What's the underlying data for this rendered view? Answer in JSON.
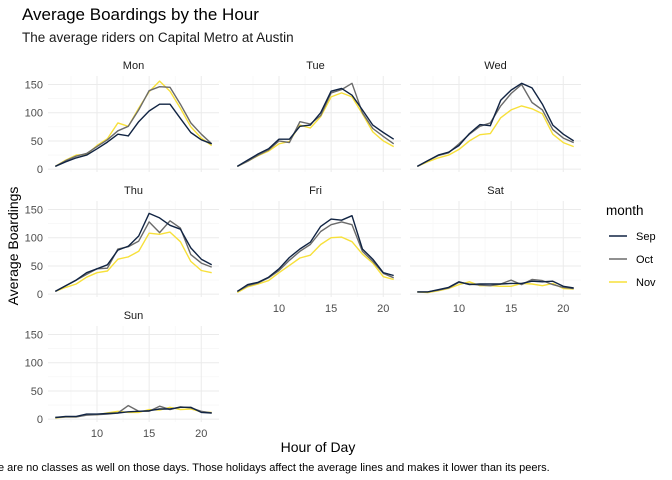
{
  "chart_data": {
    "type": "line",
    "title": "Average Boardings by the Hour",
    "subtitle": "The average riders on Capital Metro at Austin",
    "xlabel": "Hour of Day",
    "ylabel": "Average Boardings",
    "caption": "e are no classes as well on those days. Those holidays affect the average lines and makes it lower than its peers.",
    "xlim": [
      5.3,
      21.7
    ],
    "ylim": [
      -5,
      165
    ],
    "x_ticks": [
      10,
      15,
      20
    ],
    "y_ticks": [
      0,
      50,
      100,
      150
    ],
    "legend": {
      "title": "month",
      "placement": "right",
      "entries": [
        {
          "name": "Sep",
          "color": "#112443"
        },
        {
          "name": "Oct",
          "color": "#6b6b6b"
        },
        {
          "name": "Nov",
          "color": "#f7e03a"
        }
      ]
    },
    "hours": [
      6,
      7,
      8,
      9,
      10,
      11,
      12,
      13,
      14,
      15,
      16,
      17,
      18,
      19,
      20,
      21
    ],
    "facets": [
      {
        "label": "Mon",
        "series": [
          {
            "name": "Sep",
            "values": [
              5,
              13,
              20,
              25,
              36,
              48,
              62,
              59,
              84,
              103,
              115,
              115,
              90,
              65,
              52,
              45
            ]
          },
          {
            "name": "Oct",
            "values": [
              5,
              15,
              23,
              28,
              40,
              52,
              68,
              76,
              105,
              139,
              146,
              145,
              115,
              82,
              62,
              45
            ]
          },
          {
            "name": "Nov",
            "values": [
              5,
              16,
              25,
              26,
              42,
              54,
              82,
              76,
              108,
              137,
              156,
              138,
              108,
              75,
              55,
              42
            ]
          }
        ]
      },
      {
        "label": "Tue",
        "series": [
          {
            "name": "Sep",
            "values": [
              5,
              16,
              27,
              36,
              53,
              53,
              76,
              78,
              100,
              138,
              143,
              131,
              105,
              78,
              65,
              53
            ]
          },
          {
            "name": "Oct",
            "values": [
              5,
              14,
              25,
              34,
              50,
              47,
              84,
              80,
              95,
              135,
              141,
              152,
              100,
              72,
              58,
              45
            ]
          },
          {
            "name": "Nov",
            "values": [
              5,
              14,
              24,
              32,
              45,
              49,
              78,
              73,
              93,
              128,
              135,
              128,
              98,
              66,
              50,
              40
            ]
          }
        ]
      },
      {
        "label": "Wed",
        "series": [
          {
            "name": "Sep",
            "values": [
              5,
              15,
              25,
              30,
              42,
              63,
              79,
              77,
              122,
              140,
              152,
              144,
              115,
              78,
              62,
              50
            ]
          },
          {
            "name": "Oct",
            "values": [
              5,
              15,
              24,
              29,
              45,
              62,
              76,
              82,
              112,
              134,
              150,
              118,
              105,
              70,
              55,
              47
            ]
          },
          {
            "name": "Nov",
            "values": [
              5,
              13,
              20,
              25,
              35,
              50,
              61,
              63,
              91,
              105,
              112,
              107,
              98,
              62,
              47,
              40
            ]
          }
        ]
      },
      {
        "label": "Thu",
        "series": [
          {
            "name": "Sep",
            "values": [
              5,
              15,
              25,
              38,
              45,
              52,
              78,
              85,
              103,
              143,
              135,
              122,
              115,
              82,
              62,
              52
            ]
          },
          {
            "name": "Oct",
            "values": [
              5,
              15,
              25,
              35,
              45,
              46,
              80,
              84,
              94,
              128,
              109,
              130,
              117,
              70,
              55,
              48
            ]
          },
          {
            "name": "Nov",
            "values": [
              5,
              12,
              18,
              30,
              38,
              41,
              62,
              66,
              76,
              108,
              106,
              110,
              93,
              58,
              42,
              38
            ]
          }
        ]
      },
      {
        "label": "Fri",
        "series": [
          {
            "name": "Sep",
            "values": [
              5,
              17,
              21,
              30,
              45,
              65,
              80,
              92,
              120,
              133,
              131,
              139,
              80,
              62,
              38,
              33
            ]
          },
          {
            "name": "Oct",
            "values": [
              5,
              15,
              20,
              29,
              42,
              60,
              76,
              88,
              111,
              123,
              128,
              123,
              76,
              58,
              37,
              29
            ]
          },
          {
            "name": "Nov",
            "values": [
              3,
              13,
              18,
              24,
              38,
              51,
              64,
              69,
              88,
              100,
              101,
              93,
              71,
              55,
              31,
              26
            ]
          }
        ]
      },
      {
        "label": "Sat",
        "series": [
          {
            "name": "Sep",
            "values": [
              4,
              4,
              8,
              12,
              22,
              17,
              18,
              18,
              18,
              19,
              19,
              23,
              22,
              23,
              14,
              11
            ]
          },
          {
            "name": "Oct",
            "values": [
              4,
              4,
              7,
              11,
              21,
              18,
              16,
              15,
              18,
              25,
              17,
              26,
              24,
              17,
              12,
              10
            ]
          },
          {
            "name": "Nov",
            "values": [
              4,
              3,
              6,
              10,
              17,
              22,
              15,
              15,
              14,
              14,
              19,
              18,
              15,
              19,
              10,
              9
            ]
          }
        ]
      },
      {
        "label": "Sun",
        "series": [
          {
            "name": "Sep",
            "values": [
              3,
              5,
              5,
              9,
              9,
              10,
              11,
              13,
              14,
              15,
              18,
              18,
              21,
              21,
              12,
              11
            ]
          },
          {
            "name": "Oct",
            "values": [
              3,
              4,
              4,
              7,
              8,
              9,
              11,
              24,
              14,
              14,
              23,
              17,
              22,
              20,
              14,
              11
            ]
          },
          {
            "name": "Nov",
            "values": [
              2,
              4,
              4,
              8,
              8,
              11,
              14,
              12,
              12,
              17,
              16,
              21,
              17,
              18,
              13,
              12
            ]
          }
        ]
      }
    ]
  }
}
